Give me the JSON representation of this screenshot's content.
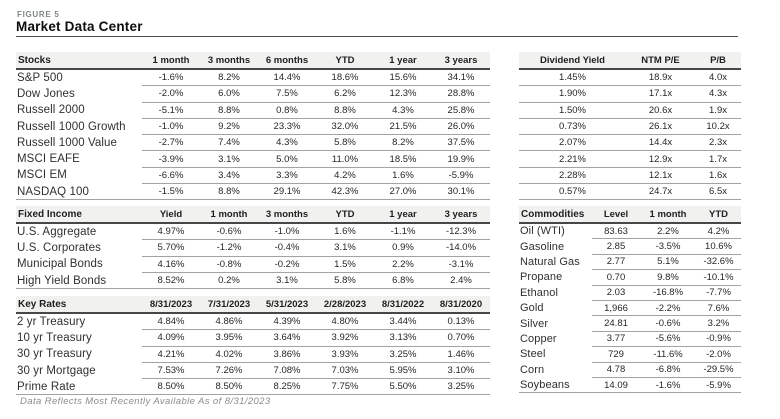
{
  "figure_label": "FIGURE 5",
  "title": "Market Data Center",
  "footer": "Data Reflects Most Recently Available As of 8/31/2023",
  "colors": {
    "header_bg": "#f1f1f0",
    "header_rule": "#474747",
    "row_rule": "#a3a3a3",
    "muted_label": "#7e8682",
    "footer_text": "#8c8c8c"
  },
  "tables": {
    "stocks": {
      "has_label": true,
      "headers": [
        "Stocks",
        "1 month",
        "3 months",
        "6 months",
        "YTD",
        "1 year",
        "3 years"
      ],
      "rows": [
        {
          "label": "S&P 500",
          "values": [
            "-1.6%",
            "8.2%",
            "14.4%",
            "18.6%",
            "15.6%",
            "34.1%"
          ]
        },
        {
          "label": "Dow Jones",
          "values": [
            "-2.0%",
            "6.0%",
            "7.5%",
            "6.2%",
            "12.3%",
            "28.8%"
          ]
        },
        {
          "label": "Russell 2000",
          "values": [
            "-5.1%",
            "8.8%",
            "0.8%",
            "8.8%",
            "4.3%",
            "25.8%"
          ]
        },
        {
          "label": "Russell 1000 Growth",
          "values": [
            "-1.0%",
            "9.2%",
            "23.3%",
            "32.0%",
            "21.5%",
            "26.0%"
          ]
        },
        {
          "label": "Russell 1000 Value",
          "values": [
            "-2.7%",
            "7.4%",
            "4.3%",
            "5.8%",
            "8.2%",
            "37.5%"
          ]
        },
        {
          "label": "MSCI EAFE",
          "values": [
            "-3.9%",
            "3.1%",
            "5.0%",
            "11.0%",
            "18.5%",
            "19.9%"
          ]
        },
        {
          "label": "MSCI EM",
          "values": [
            "-6.6%",
            "3.4%",
            "3.3%",
            "4.2%",
            "1.6%",
            "-5.9%"
          ]
        },
        {
          "label": "NASDAQ 100",
          "values": [
            "-1.5%",
            "8.8%",
            "29.1%",
            "42.3%",
            "27.0%",
            "30.1%"
          ]
        }
      ]
    },
    "valuation": {
      "has_label": false,
      "headers": [
        "Dividend Yield",
        "NTM P/E",
        "P/B"
      ],
      "rows": [
        {
          "values": [
            "1.45%",
            "18.9x",
            "4.0x"
          ]
        },
        {
          "values": [
            "1.90%",
            "17.1x",
            "4.3x"
          ]
        },
        {
          "values": [
            "1.50%",
            "20.6x",
            "1.9x"
          ]
        },
        {
          "values": [
            "0.73%",
            "26.1x",
            "10.2x"
          ]
        },
        {
          "values": [
            "2.07%",
            "14.4x",
            "2.3x"
          ]
        },
        {
          "values": [
            "2.21%",
            "12.9x",
            "1.7x"
          ]
        },
        {
          "values": [
            "2.28%",
            "12.1x",
            "1.6x"
          ]
        },
        {
          "values": [
            "0.57%",
            "24.7x",
            "6.5x"
          ]
        }
      ]
    },
    "fixed_income": {
      "has_label": true,
      "headers": [
        "Fixed Income",
        "Yield",
        "1 month",
        "3 months",
        "YTD",
        "1 year",
        "3 years"
      ],
      "rows": [
        {
          "label": "U.S. Aggregate",
          "values": [
            "4.97%",
            "-0.6%",
            "-1.0%",
            "1.6%",
            "-1.1%",
            "-12.3%"
          ]
        },
        {
          "label": "U.S. Corporates",
          "values": [
            "5.70%",
            "-1.2%",
            "-0.4%",
            "3.1%",
            "0.9%",
            "-14.0%"
          ]
        },
        {
          "label": "Municipal Bonds",
          "values": [
            "4.16%",
            "-0.8%",
            "-0.2%",
            "1.5%",
            "2.2%",
            "-3.1%"
          ]
        },
        {
          "label": "High Yield Bonds",
          "values": [
            "8.52%",
            "0.2%",
            "3.1%",
            "5.8%",
            "6.8%",
            "2.4%"
          ]
        }
      ]
    },
    "commodities": {
      "has_label": true,
      "headers": [
        "Commodities",
        "Level",
        "1 month",
        "YTD"
      ],
      "rows": [
        {
          "label": "Oil (WTI)",
          "values": [
            "83.63",
            "2.2%",
            "4.2%"
          ]
        },
        {
          "label": "Gasoline",
          "values": [
            "2.85",
            "-3.5%",
            "10.6%"
          ]
        },
        {
          "label": "Natural Gas",
          "values": [
            "2.77",
            "5.1%",
            "-32.6%"
          ]
        },
        {
          "label": "Propane",
          "values": [
            "0.70",
            "9.8%",
            "-10.1%"
          ]
        },
        {
          "label": "Ethanol",
          "values": [
            "2.03",
            "-16.8%",
            "-7.7%"
          ]
        },
        {
          "label": "Gold",
          "values": [
            "1,966",
            "-2.2%",
            "7.6%"
          ]
        },
        {
          "label": "Silver",
          "values": [
            "24.81",
            "-0.6%",
            "3.2%"
          ]
        },
        {
          "label": "Copper",
          "values": [
            "3.77",
            "-5.6%",
            "-0.9%"
          ]
        },
        {
          "label": "Steel",
          "values": [
            "729",
            "-11.6%",
            "-2.0%"
          ]
        },
        {
          "label": "Corn",
          "values": [
            "4.78",
            "-6.8%",
            "-29.5%"
          ]
        },
        {
          "label": "Soybeans",
          "values": [
            "14.09",
            "-1.6%",
            "-5.9%"
          ]
        }
      ]
    },
    "key_rates": {
      "has_label": true,
      "headers": [
        "Key Rates",
        "8/31/2023",
        "7/31/2023",
        "5/31/2023",
        "2/28/2023",
        "8/31/2022",
        "8/31/2020"
      ],
      "rows": [
        {
          "label": "2 yr Treasury",
          "values": [
            "4.84%",
            "4.86%",
            "4.39%",
            "4.80%",
            "3.44%",
            "0.13%"
          ]
        },
        {
          "label": "10 yr Treasury",
          "values": [
            "4.09%",
            "3.95%",
            "3.64%",
            "3.92%",
            "3.13%",
            "0.70%"
          ]
        },
        {
          "label": "30 yr Treasury",
          "values": [
            "4.21%",
            "4.02%",
            "3.86%",
            "3.93%",
            "3.25%",
            "1.46%"
          ]
        },
        {
          "label": "30 yr Mortgage",
          "values": [
            "7.53%",
            "7.26%",
            "7.08%",
            "7.03%",
            "5.95%",
            "3.10%"
          ]
        },
        {
          "label": "Prime Rate",
          "values": [
            "8.50%",
            "8.50%",
            "8.25%",
            "7.75%",
            "5.50%",
            "3.25%"
          ]
        }
      ]
    }
  }
}
